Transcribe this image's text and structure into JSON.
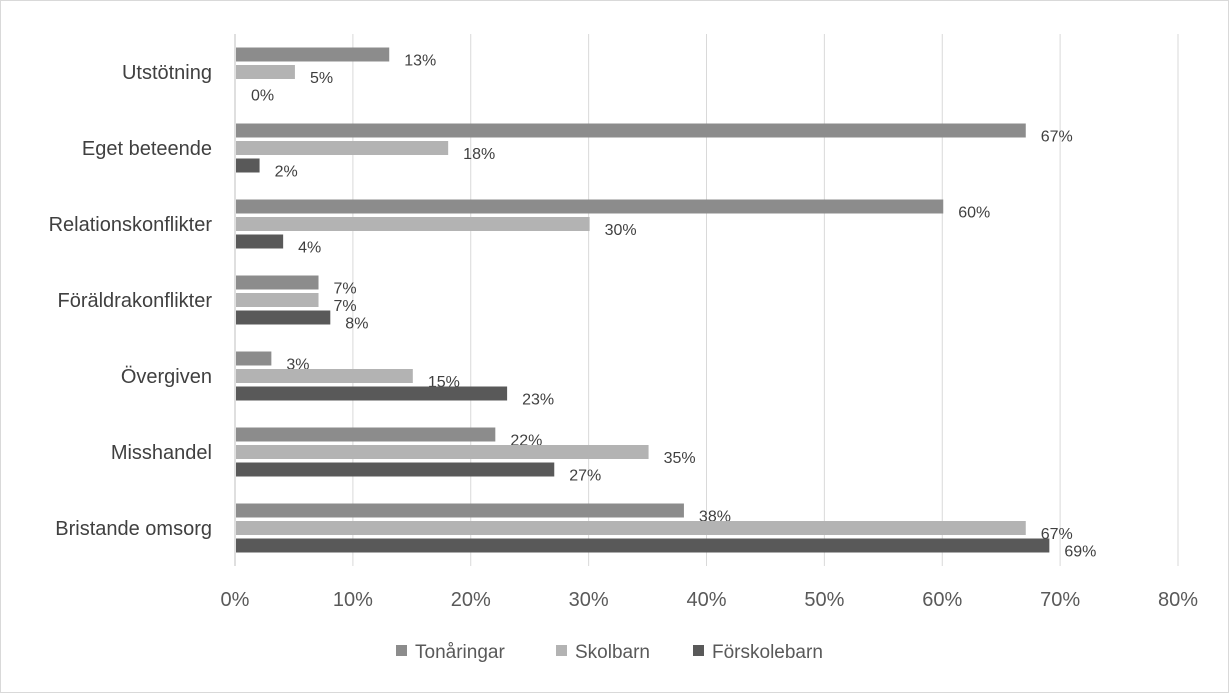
{
  "chart_data": {
    "type": "bar",
    "orientation": "horizontal",
    "categories": [
      "Utstötning",
      "Eget beteende",
      "Relationskonflikter",
      "Föräldrakonflikter",
      "Övergiven",
      "Misshandel",
      "Bristande omsorg"
    ],
    "series": [
      {
        "name": "Tonåringar",
        "color": "#8c8c8c",
        "values": [
          13,
          67,
          60,
          7,
          3,
          22,
          38
        ]
      },
      {
        "name": "Skolbarn",
        "color": "#b3b3b3",
        "values": [
          5,
          18,
          30,
          7,
          15,
          35,
          67
        ]
      },
      {
        "name": "Förskolebarn",
        "color": "#595959",
        "values": [
          0,
          2,
          4,
          8,
          23,
          27,
          69
        ]
      }
    ],
    "xlim": [
      0,
      80
    ],
    "xticks": [
      0,
      10,
      20,
      30,
      40,
      50,
      60,
      70,
      80
    ],
    "tick_suffix": "%",
    "grid": "vertical",
    "legend": "bottom",
    "title": "",
    "xlabel": "",
    "ylabel": ""
  }
}
